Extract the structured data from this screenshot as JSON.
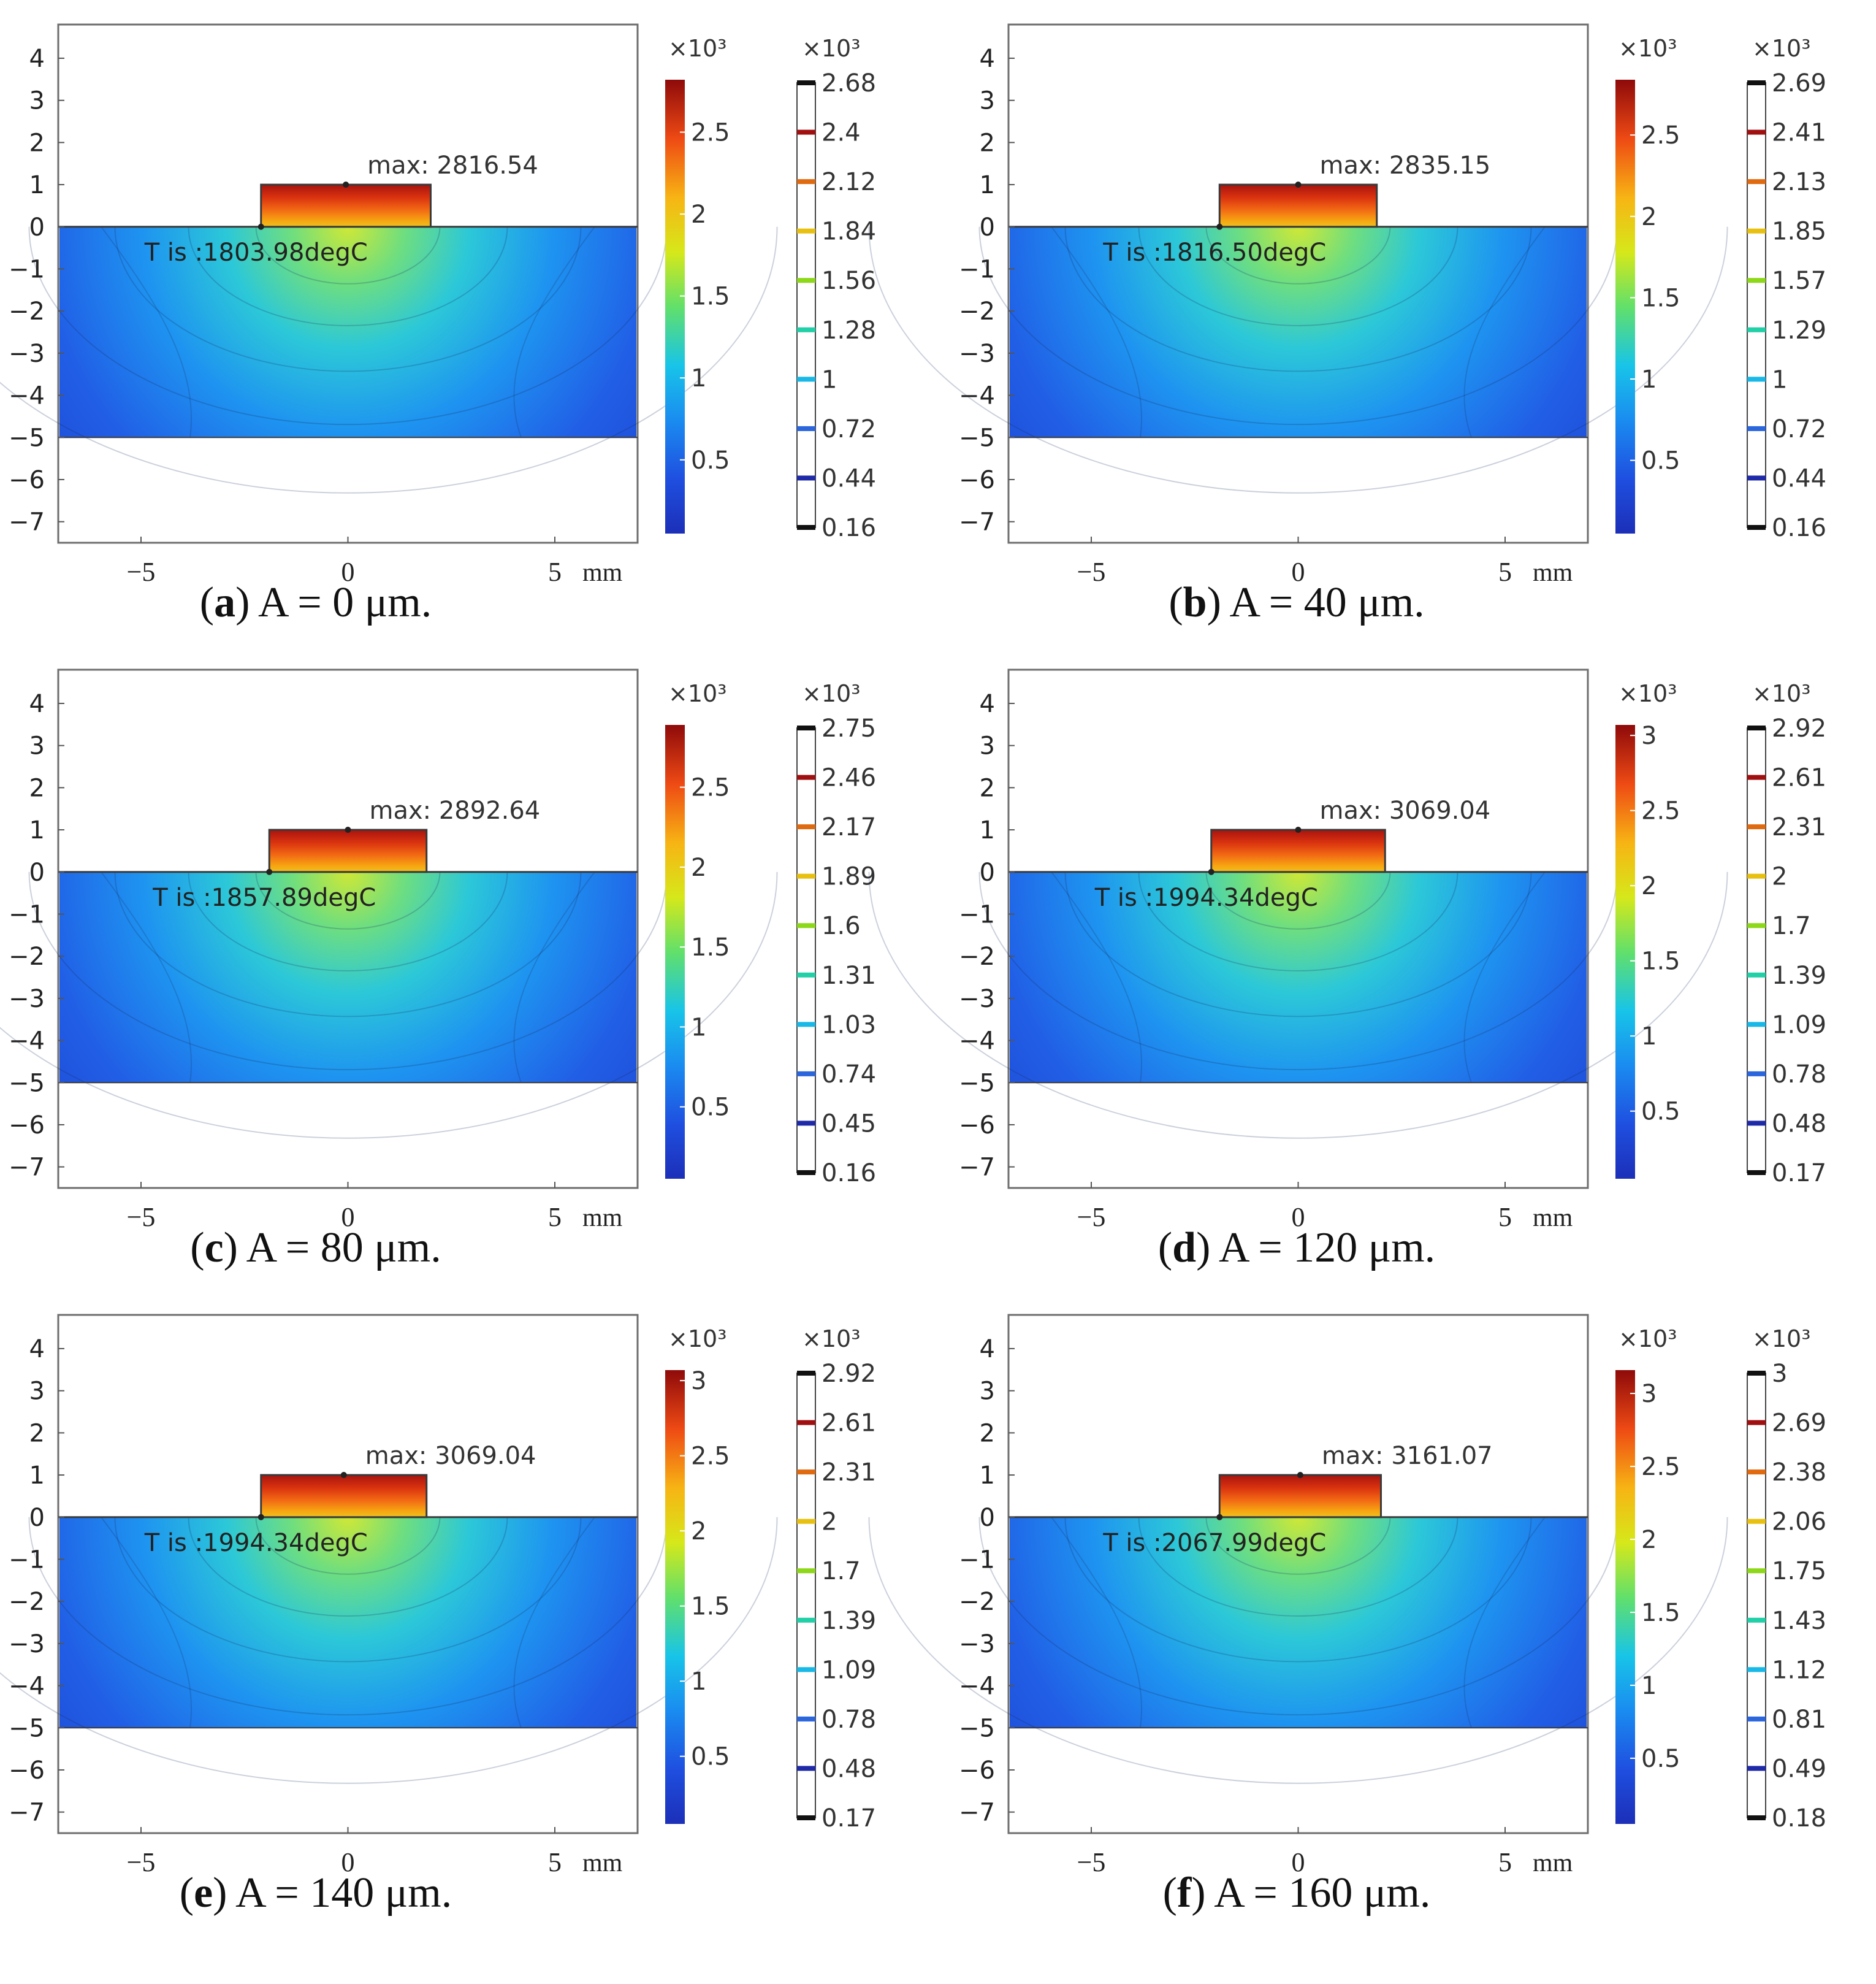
{
  "figure": {
    "panels": [
      {
        "letter": "a",
        "caption": "A = 0 μm.",
        "max_label": "max: 2816.54",
        "t_label": "T is :1803.98degC",
        "surf_ticks": [
          "2.5",
          "2",
          "1.5",
          "1",
          "0.5"
        ],
        "surf_tick_vals": [
          2.5,
          2.0,
          1.5,
          1.0,
          0.5
        ],
        "surf_max": 2.82,
        "contour_ticks": [
          "2.68",
          "2.4",
          "2.12",
          "1.84",
          "1.56",
          "1.28",
          "1",
          "0.72",
          "0.44",
          "0.16"
        ],
        "block_x": [
          -2.1,
          2.0
        ]
      },
      {
        "letter": "b",
        "caption": "A = 40 μm.",
        "max_label": "max: 2835.15",
        "t_label": "T is :1816.50degC",
        "surf_ticks": [
          "2.5",
          "2",
          "1.5",
          "1",
          "0.5"
        ],
        "surf_tick_vals": [
          2.5,
          2.0,
          1.5,
          1.0,
          0.5
        ],
        "surf_max": 2.84,
        "contour_ticks": [
          "2.69",
          "2.41",
          "2.13",
          "1.85",
          "1.57",
          "1.29",
          "1",
          "0.72",
          "0.44",
          "0.16"
        ],
        "block_x": [
          -1.9,
          1.9
        ]
      },
      {
        "letter": "c",
        "caption": "A = 80 μm.",
        "max_label": "max: 2892.64",
        "t_label": "T is :1857.89degC",
        "surf_ticks": [
          "2.5",
          "2",
          "1.5",
          "1",
          "0.5"
        ],
        "surf_tick_vals": [
          2.5,
          2.0,
          1.5,
          1.0,
          0.5
        ],
        "surf_max": 2.89,
        "contour_ticks": [
          "2.75",
          "2.46",
          "2.17",
          "1.89",
          "1.6",
          "1.31",
          "1.03",
          "0.74",
          "0.45",
          "0.16"
        ],
        "block_x": [
          -1.9,
          1.9
        ]
      },
      {
        "letter": "d",
        "caption": "A = 120 μm.",
        "max_label": "max: 3069.04",
        "t_label": "T is :1994.34degC",
        "surf_ticks": [
          "3",
          "2.5",
          "2",
          "1.5",
          "1",
          "0.5"
        ],
        "surf_tick_vals": [
          3.0,
          2.5,
          2.0,
          1.5,
          1.0,
          0.5
        ],
        "surf_max": 3.07,
        "contour_ticks": [
          "2.92",
          "2.61",
          "2.31",
          "2",
          "1.7",
          "1.39",
          "1.09",
          "0.78",
          "0.48",
          "0.17"
        ],
        "block_x": [
          -2.1,
          2.1
        ]
      },
      {
        "letter": "e",
        "caption": "A = 140 μm.",
        "max_label": "max: 3069.04",
        "t_label": "T is :1994.34degC",
        "surf_ticks": [
          "3",
          "2.5",
          "2",
          "1.5",
          "1",
          "0.5"
        ],
        "surf_tick_vals": [
          3.0,
          2.5,
          2.0,
          1.5,
          1.0,
          0.5
        ],
        "surf_max": 3.07,
        "contour_ticks": [
          "2.92",
          "2.61",
          "2.31",
          "2",
          "1.7",
          "1.39",
          "1.09",
          "0.78",
          "0.48",
          "0.17"
        ],
        "block_x": [
          -2.1,
          1.9
        ]
      },
      {
        "letter": "f",
        "caption": "A = 160 μm.",
        "max_label": "max: 3161.07",
        "t_label": "T is :2067.99degC",
        "surf_ticks": [
          "3",
          "2.5",
          "2",
          "1.5",
          "1",
          "0.5"
        ],
        "surf_tick_vals": [
          3.0,
          2.5,
          2.0,
          1.5,
          1.0,
          0.5
        ],
        "surf_max": 3.16,
        "contour_ticks": [
          "3",
          "2.69",
          "2.38",
          "2.06",
          "1.75",
          "1.43",
          "1.12",
          "0.81",
          "0.49",
          "0.18"
        ],
        "block_x": [
          -1.9,
          2.0
        ]
      }
    ],
    "y_ticks": [
      "4",
      "3",
      "2",
      "1",
      "0",
      "−1",
      "−2",
      "−3",
      "−4",
      "−5",
      "−6",
      "−7"
    ],
    "x_ticks": [
      "−5",
      "0",
      "5"
    ],
    "unit": "mm",
    "multiplier": "×10³"
  },
  "chart_data": [
    {
      "type": "heatmap",
      "title": "(a) A = 0 μm.",
      "xlabel": "mm",
      "xlim": [
        -7,
        7
      ],
      "ylim": [
        -7.5,
        4.8
      ],
      "substrate_y": [
        -5,
        0
      ],
      "block_x": [
        -2.1,
        2.0
      ],
      "block_y": [
        0,
        1
      ],
      "max_temperature_degC": 2816.54,
      "interface_temperature_degC": 1803.98,
      "colorbar_range_1e3": [
        0.16,
        2.82
      ],
      "contour_levels_1e3": [
        2.68,
        2.4,
        2.12,
        1.84,
        1.56,
        1.28,
        1,
        0.72,
        0.44,
        0.16
      ]
    },
    {
      "type": "heatmap",
      "title": "(b) A = 40 μm.",
      "xlabel": "mm",
      "xlim": [
        -7,
        7
      ],
      "ylim": [
        -7.5,
        4.8
      ],
      "substrate_y": [
        -5,
        0
      ],
      "block_x": [
        -1.9,
        1.9
      ],
      "block_y": [
        0,
        1
      ],
      "max_temperature_degC": 2835.15,
      "interface_temperature_degC": 1816.5,
      "colorbar_range_1e3": [
        0.16,
        2.84
      ],
      "contour_levels_1e3": [
        2.69,
        2.41,
        2.13,
        1.85,
        1.57,
        1.29,
        1,
        0.72,
        0.44,
        0.16
      ]
    },
    {
      "type": "heatmap",
      "title": "(c) A = 80 μm.",
      "xlabel": "mm",
      "xlim": [
        -7,
        7
      ],
      "ylim": [
        -7.5,
        4.8
      ],
      "substrate_y": [
        -5,
        0
      ],
      "block_x": [
        -1.9,
        1.9
      ],
      "block_y": [
        0,
        1
      ],
      "max_temperature_degC": 2892.64,
      "interface_temperature_degC": 1857.89,
      "colorbar_range_1e3": [
        0.16,
        2.89
      ],
      "contour_levels_1e3": [
        2.75,
        2.46,
        2.17,
        1.89,
        1.6,
        1.31,
        1.03,
        0.74,
        0.45,
        0.16
      ]
    },
    {
      "type": "heatmap",
      "title": "(d) A = 120 μm.",
      "xlabel": "mm",
      "xlim": [
        -7,
        7
      ],
      "ylim": [
        -7.5,
        4.8
      ],
      "substrate_y": [
        -5,
        0
      ],
      "block_x": [
        -2.1,
        2.1
      ],
      "block_y": [
        0,
        1
      ],
      "max_temperature_degC": 3069.04,
      "interface_temperature_degC": 1994.34,
      "colorbar_range_1e3": [
        0.17,
        3.07
      ],
      "contour_levels_1e3": [
        2.92,
        2.61,
        2.31,
        2,
        1.7,
        1.39,
        1.09,
        0.78,
        0.48,
        0.17
      ]
    },
    {
      "type": "heatmap",
      "title": "(e) A = 140 μm.",
      "xlabel": "mm",
      "xlim": [
        -7,
        7
      ],
      "ylim": [
        -7.5,
        4.8
      ],
      "substrate_y": [
        -5,
        0
      ],
      "block_x": [
        -2.1,
        1.9
      ],
      "block_y": [
        0,
        1
      ],
      "max_temperature_degC": 3069.04,
      "interface_temperature_degC": 1994.34,
      "colorbar_range_1e3": [
        0.17,
        3.07
      ],
      "contour_levels_1e3": [
        2.92,
        2.61,
        2.31,
        2,
        1.7,
        1.39,
        1.09,
        0.78,
        0.48,
        0.17
      ]
    },
    {
      "type": "heatmap",
      "title": "(f) A = 160 μm.",
      "xlabel": "mm",
      "xlim": [
        -7,
        7
      ],
      "ylim": [
        -7.5,
        4.8
      ],
      "substrate_y": [
        -5,
        0
      ],
      "block_x": [
        -1.9,
        2.0
      ],
      "block_y": [
        0,
        1
      ],
      "max_temperature_degC": 3161.07,
      "interface_temperature_degC": 2067.99,
      "colorbar_range_1e3": [
        0.18,
        3.16
      ],
      "contour_levels_1e3": [
        3,
        2.69,
        2.38,
        2.06,
        1.75,
        1.43,
        1.12,
        0.81,
        0.49,
        0.18
      ]
    }
  ]
}
